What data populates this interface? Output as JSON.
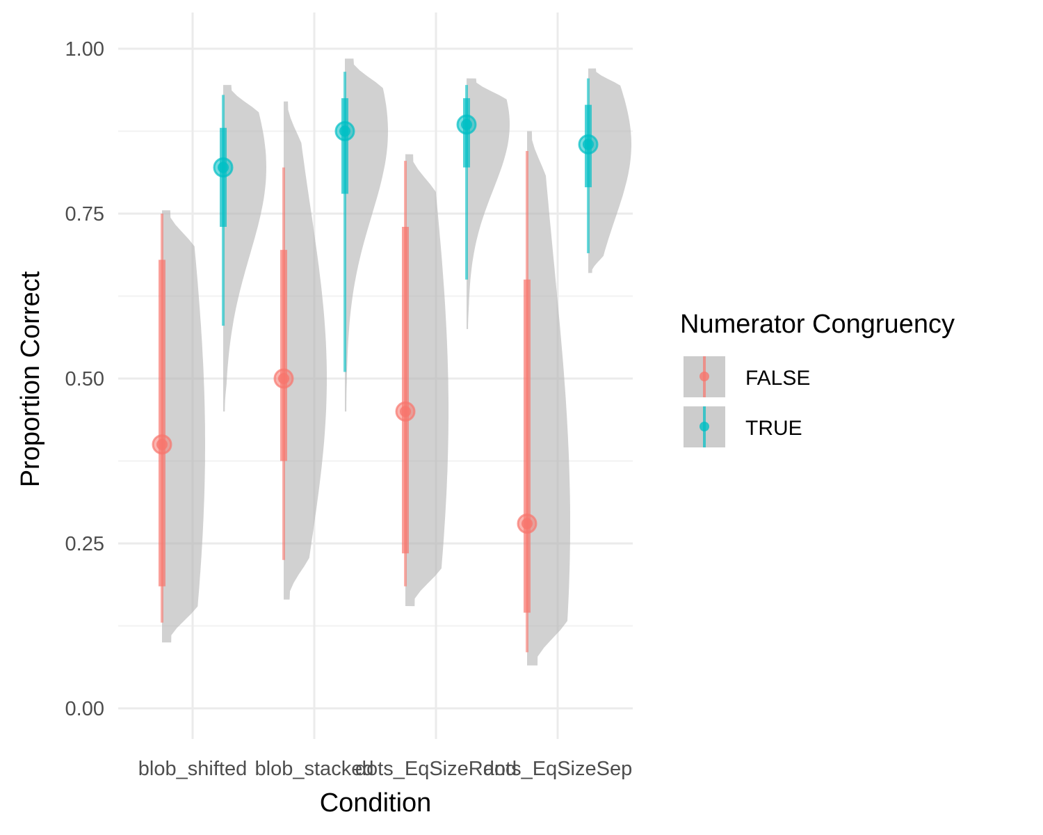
{
  "chart_data": {
    "type": "raincloud",
    "xlabel": "Condition",
    "ylabel": "Proportion Correct",
    "ylim": [
      -0.08,
      1.04
    ],
    "y_ticks": [
      "0.00",
      "0.25",
      "0.50",
      "0.75",
      "1.00"
    ],
    "categories": [
      "blob_shifted",
      "blob_stacked",
      "dots_EqSizeRand",
      "dots_EqSizeSep"
    ],
    "legend": {
      "title": "Numerator Congruency",
      "position": "right",
      "entries": [
        {
          "label": "FALSE",
          "color": "#F8766D"
        },
        {
          "label": "TRUE",
          "color": "#00BFC4"
        }
      ]
    },
    "series": [
      {
        "name": "FALSE",
        "color": "#F8766D",
        "points": [
          {
            "category": "blob_shifted",
            "median": 0.4,
            "q_inner": [
              0.185,
              0.68
            ],
            "q_outer": [
              0.13,
              0.75
            ],
            "density_range": [
              0.1,
              0.755
            ]
          },
          {
            "category": "blob_stacked",
            "median": 0.5,
            "q_inner": [
              0.375,
              0.695
            ],
            "q_outer": [
              0.225,
              0.82
            ],
            "density_range": [
              0.165,
              0.92
            ]
          },
          {
            "category": "dots_EqSizeRand",
            "median": 0.45,
            "q_inner": [
              0.235,
              0.73
            ],
            "q_outer": [
              0.185,
              0.83
            ],
            "density_range": [
              0.155,
              0.84
            ]
          },
          {
            "category": "dots_EqSizeSep",
            "median": 0.28,
            "q_inner": [
              0.145,
              0.65
            ],
            "q_outer": [
              0.085,
              0.845
            ],
            "density_range": [
              0.065,
              0.875
            ]
          }
        ]
      },
      {
        "name": "TRUE",
        "color": "#00BFC4",
        "points": [
          {
            "category": "blob_shifted",
            "median": 0.82,
            "q_inner": [
              0.73,
              0.88
            ],
            "q_outer": [
              0.58,
              0.93
            ],
            "density_range": [
              0.45,
              0.945
            ]
          },
          {
            "category": "blob_stacked",
            "median": 0.875,
            "q_inner": [
              0.78,
              0.925
            ],
            "q_outer": [
              0.51,
              0.965
            ],
            "density_range": [
              0.45,
              0.985
            ]
          },
          {
            "category": "dots_EqSizeRand",
            "median": 0.885,
            "q_inner": [
              0.82,
              0.925
            ],
            "q_outer": [
              0.65,
              0.945
            ],
            "density_range": [
              0.575,
              0.955
            ]
          },
          {
            "category": "dots_EqSizeSep",
            "median": 0.855,
            "q_inner": [
              0.79,
              0.915
            ],
            "q_outer": [
              0.69,
              0.955
            ],
            "density_range": [
              0.66,
              0.97
            ]
          }
        ]
      }
    ],
    "grid": true
  }
}
